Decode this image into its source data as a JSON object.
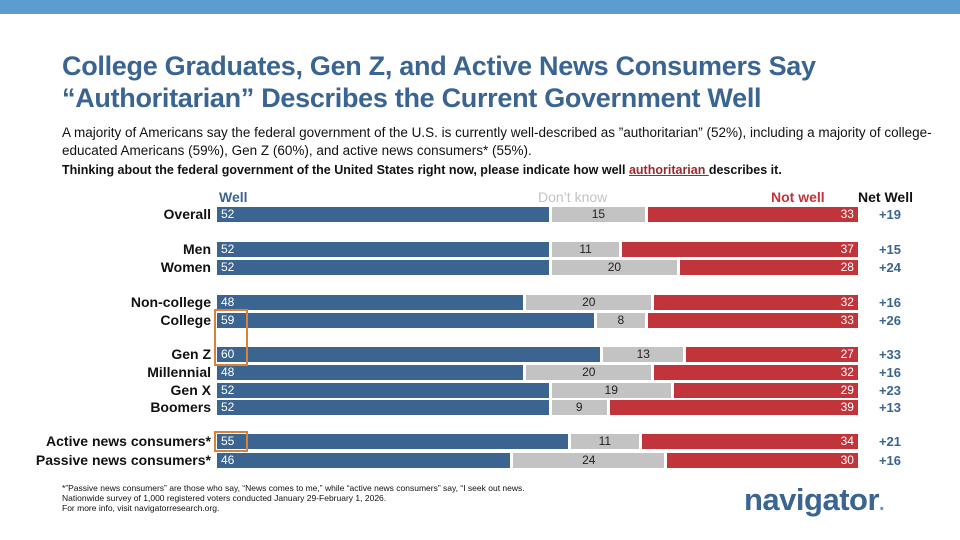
{
  "title": "College Graduates, Gen Z, and Active News Consumers Say “Authoritarian” Describes the Current Government Well",
  "subtitle": "A majority of Americans say the federal government of the U.S. is currently well-described as ”authoritarian” (52%), including a majority of college-educated Americans (59%), Gen Z (60%), and active news consumers* (55%).",
  "question": {
    "before": "Thinking about the federal government of the United States right now, please indicate how well ",
    "highlight": "authoritarian ",
    "after": "describes it."
  },
  "footnote": [
    "*”Passive news consumers” are those who say, “News comes to me,” while “active news consumers” say, “I seek out news.",
    "Nationwide survey of 1,000 registered voters conducted January 29-February 1, 2026.",
    "For more info, visit navigatorresearch.org."
  ],
  "logo": "navigator",
  "chart_data": {
    "type": "bar",
    "orientation": "horizontal",
    "stacked": true,
    "series": [
      {
        "name": "Well",
        "color": "#3c6490"
      },
      {
        "name": "Don’t know",
        "color": "#c3c3c3"
      },
      {
        "name": "Not well",
        "color": "#c0343a"
      }
    ],
    "net_header": "Net Well",
    "highlighted": [
      "College",
      "Gen Z",
      "Active news consumers*"
    ],
    "rows": [
      {
        "label": "Overall",
        "well": 52,
        "dk": 15,
        "not": 33,
        "net": "+19"
      },
      {
        "label": "Men",
        "well": 52,
        "dk": 11,
        "not": 37,
        "net": "+15"
      },
      {
        "label": "Women",
        "well": 52,
        "dk": 20,
        "not": 28,
        "net": "+24"
      },
      {
        "label": "Non-college",
        "well": 48,
        "dk": 20,
        "not": 32,
        "net": "+16"
      },
      {
        "label": "College",
        "well": 59,
        "dk": 8,
        "not": 33,
        "net": "+26"
      },
      {
        "label": "Gen Z",
        "well": 60,
        "dk": 13,
        "not": 27,
        "net": "+33"
      },
      {
        "label": "Millennial",
        "well": 48,
        "dk": 20,
        "not": 32,
        "net": "+16"
      },
      {
        "label": "Gen X",
        "well": 52,
        "dk": 19,
        "not": 29,
        "net": "+23"
      },
      {
        "label": "Boomers",
        "well": 52,
        "dk": 9,
        "not": 39,
        "net": "+13"
      },
      {
        "label": "Active news consumers*",
        "well": 55,
        "dk": 11,
        "not": 34,
        "net": "+21"
      },
      {
        "label": "Passive news consumers*",
        "well": 46,
        "dk": 24,
        "not": 30,
        "net": "+16"
      }
    ]
  }
}
